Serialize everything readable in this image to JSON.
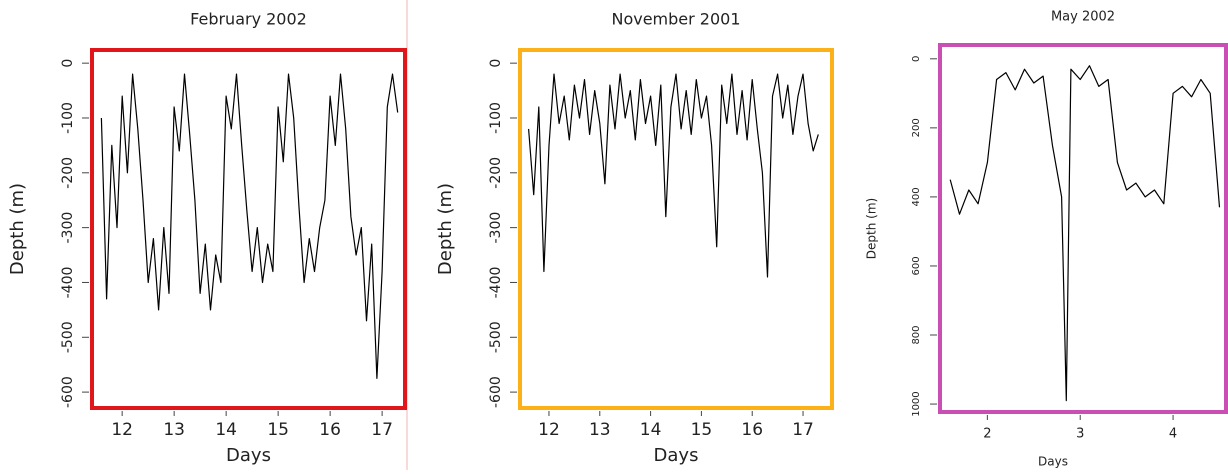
{
  "chart_data": [
    {
      "type": "line",
      "title": "February 2002",
      "x_label": "Days",
      "y_label": "Depth (m)",
      "frame_color": "#e0161b",
      "line_color": "#000000",
      "x": [
        11.6,
        11.7,
        11.8,
        11.9,
        12.0,
        12.1,
        12.2,
        12.3,
        12.4,
        12.5,
        12.6,
        12.7,
        12.8,
        12.9,
        13.0,
        13.1,
        13.2,
        13.3,
        13.4,
        13.5,
        13.6,
        13.7,
        13.8,
        13.9,
        14.0,
        14.1,
        14.2,
        14.3,
        14.4,
        14.5,
        14.6,
        14.7,
        14.8,
        14.9,
        15.0,
        15.1,
        15.2,
        15.3,
        15.4,
        15.5,
        15.6,
        15.7,
        15.8,
        15.9,
        16.0,
        16.1,
        16.2,
        16.3,
        16.4,
        16.5,
        16.6,
        16.7,
        16.8,
        16.9,
        17.0,
        17.1,
        17.2,
        17.3
      ],
      "values": [
        -100,
        -430,
        -150,
        -300,
        -60,
        -200,
        -20,
        -120,
        -250,
        -400,
        -320,
        -450,
        -300,
        -420,
        -80,
        -160,
        -20,
        -130,
        -250,
        -420,
        -330,
        -450,
        -350,
        -400,
        -60,
        -120,
        -20,
        -150,
        -270,
        -380,
        -300,
        -400,
        -330,
        -380,
        -80,
        -180,
        -20,
        -100,
        -260,
        -400,
        -320,
        -380,
        -300,
        -250,
        -60,
        -150,
        -20,
        -120,
        -280,
        -350,
        -300,
        -470,
        -330,
        -575,
        -380,
        -80,
        -20,
        -90
      ],
      "xlim": [
        11.42,
        17.44
      ],
      "ylim": [
        -629,
        24
      ],
      "xticks": [
        12,
        13,
        14,
        15,
        16,
        17
      ],
      "yticks": [
        0,
        -100,
        -200,
        -300,
        -400,
        -500,
        -600
      ]
    },
    {
      "type": "line",
      "title": "November 2001",
      "x_label": "Days",
      "y_label": "Depth (m)",
      "frame_color": "#fbb117",
      "line_color": "#000000",
      "x": [
        11.6,
        11.7,
        11.8,
        11.9,
        12.0,
        12.1,
        12.2,
        12.3,
        12.4,
        12.5,
        12.6,
        12.7,
        12.8,
        12.9,
        13.0,
        13.1,
        13.2,
        13.3,
        13.4,
        13.5,
        13.6,
        13.7,
        13.8,
        13.9,
        14.0,
        14.1,
        14.2,
        14.3,
        14.4,
        14.5,
        14.6,
        14.7,
        14.8,
        14.9,
        15.0,
        15.1,
        15.2,
        15.3,
        15.4,
        15.5,
        15.6,
        15.7,
        15.8,
        15.9,
        16.0,
        16.1,
        16.2,
        16.3,
        16.4,
        16.5,
        16.6,
        16.7,
        16.8,
        16.9,
        17.0,
        17.1,
        17.2,
        17.3
      ],
      "values": [
        -120,
        -240,
        -80,
        -380,
        -150,
        -20,
        -110,
        -60,
        -140,
        -40,
        -100,
        -30,
        -130,
        -50,
        -110,
        -220,
        -40,
        -120,
        -20,
        -100,
        -50,
        -140,
        -30,
        -110,
        -60,
        -150,
        -40,
        -280,
        -80,
        -20,
        -120,
        -50,
        -130,
        -30,
        -100,
        -60,
        -150,
        -335,
        -40,
        -110,
        -20,
        -130,
        -50,
        -140,
        -30,
        -120,
        -200,
        -390,
        -60,
        -20,
        -100,
        -40,
        -130,
        -60,
        -20,
        -110,
        -160,
        -130
      ],
      "xlim": [
        11.43,
        17.57
      ],
      "ylim": [
        -629,
        24
      ],
      "xticks": [
        12,
        13,
        14,
        15,
        16,
        17
      ],
      "yticks": [
        0,
        -100,
        -200,
        -300,
        -400,
        -500,
        -600
      ]
    },
    {
      "type": "line",
      "title": "May 2002",
      "x_label": "Days",
      "y_label": "Depth (m)",
      "frame_color": "#c94fb4",
      "line_color": "#000000",
      "x": [
        1.6,
        1.7,
        1.8,
        1.9,
        2.0,
        2.1,
        2.2,
        2.3,
        2.4,
        2.5,
        2.6,
        2.7,
        2.8,
        2.85,
        2.9,
        3.0,
        3.1,
        3.2,
        3.3,
        3.4,
        3.5,
        3.6,
        3.7,
        3.8,
        3.9,
        4.0,
        4.1,
        4.2,
        4.3,
        4.4,
        4.5
      ],
      "values": [
        350,
        450,
        380,
        420,
        300,
        60,
        40,
        90,
        30,
        70,
        50,
        250,
        400,
        990,
        30,
        60,
        20,
        80,
        60,
        300,
        380,
        360,
        400,
        380,
        420,
        100,
        80,
        110,
        60,
        100,
        430
      ],
      "xlim": [
        1.49,
        4.57
      ],
      "ylim": [
        1023,
        -40
      ],
      "xticks": [
        2,
        3,
        4
      ],
      "yticks": [
        0,
        200,
        400,
        600,
        800,
        1000
      ]
    }
  ]
}
